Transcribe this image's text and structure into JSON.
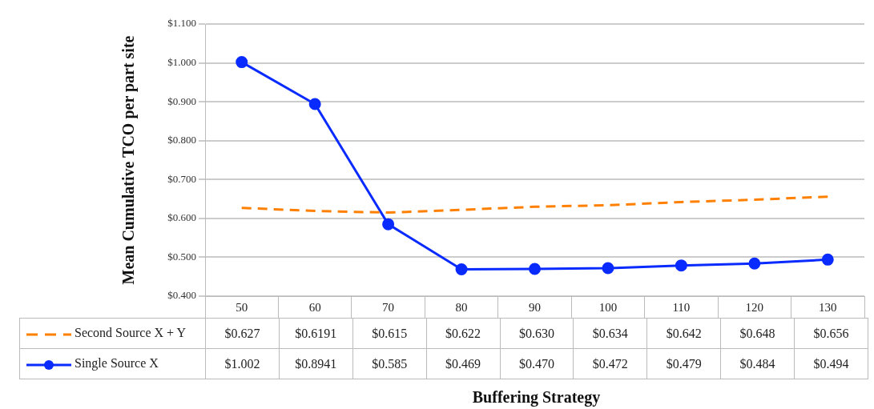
{
  "chart_data": {
    "type": "line",
    "ylabel": "Mean Cumulative TCO per part site",
    "xlabel": "Buffering Strategy",
    "categories": [
      "50",
      "60",
      "70",
      "80",
      "90",
      "100",
      "110",
      "120",
      "130"
    ],
    "series": [
      {
        "name": "Second Source X + Y",
        "color": "#ff8000",
        "line_style": "dashed",
        "marker": "none",
        "values": [
          0.627,
          0.6191,
          0.615,
          0.622,
          0.63,
          0.634,
          0.642,
          0.648,
          0.656
        ],
        "value_labels": [
          "$0.627",
          "$0.6191",
          "$0.615",
          "$0.622",
          "$0.630",
          "$0.634",
          "$0.642",
          "$0.648",
          "$0.656"
        ]
      },
      {
        "name": "Single Source X",
        "color": "#0a2bff",
        "line_style": "solid",
        "marker": "circle",
        "values": [
          1.002,
          0.8941,
          0.585,
          0.469,
          0.47,
          0.472,
          0.479,
          0.484,
          0.494
        ],
        "value_labels": [
          "$1.002",
          "$0.8941",
          "$0.585",
          "$0.469",
          "$0.470",
          "$0.472",
          "$0.479",
          "$0.484",
          "$0.494"
        ]
      }
    ],
    "ylim": [
      0.4,
      1.1
    ],
    "yticks": [
      {
        "value": 0.4,
        "label": "$0.400"
      },
      {
        "value": 0.5,
        "label": "$0.500"
      },
      {
        "value": 0.6,
        "label": "$0.600"
      },
      {
        "value": 0.7,
        "label": "$0.700"
      },
      {
        "value": 0.8,
        "label": "$0.800"
      },
      {
        "value": 0.9,
        "label": "$0.900"
      },
      {
        "value": 1.0,
        "label": "$1.000"
      },
      {
        "value": 1.1,
        "label": "$1.100"
      }
    ],
    "grid": "y",
    "legend": "bottom left"
  }
}
